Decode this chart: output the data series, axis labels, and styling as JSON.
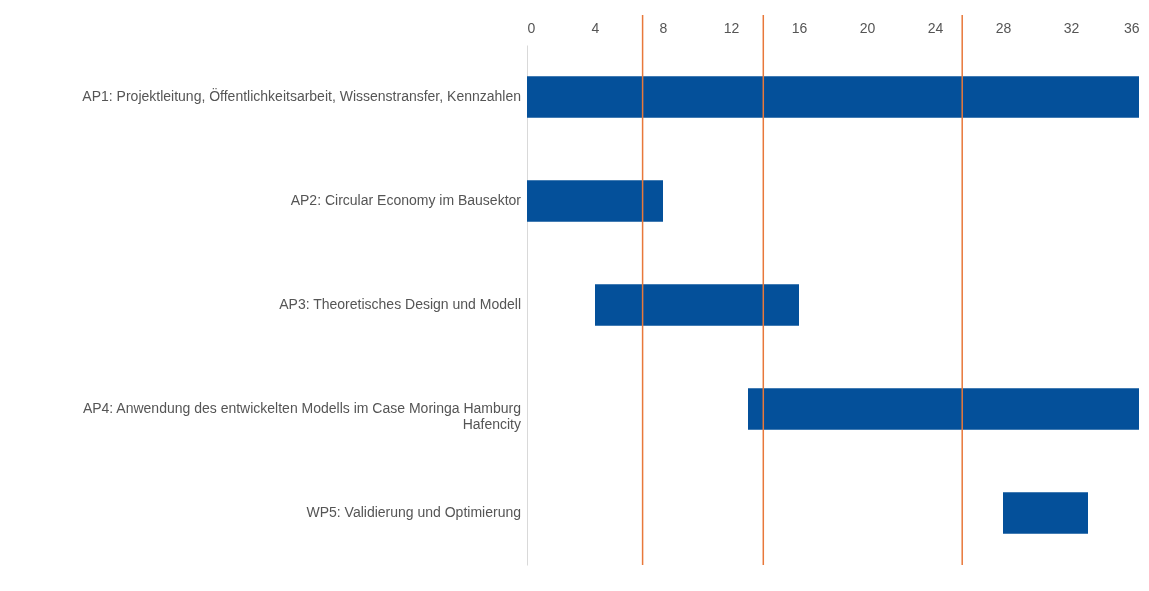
{
  "chart_data": {
    "type": "bar",
    "orientation": "horizontal",
    "categories": [
      "AP1: Projektleitung, Öffentlichkeitsarbeit, Wissenstransfer, Kennzahlen",
      "AP2: Circular Economy im Bausektor",
      "AP3: Theoretisches Design und Modell",
      "AP4: Anwendung des entwickelten Modells im Case Moringa Hamburg Hafencity",
      "WP5: Validierung und Optimierung"
    ],
    "base": [
      0,
      0,
      4,
      13,
      28
    ],
    "values": [
      36,
      8,
      12,
      23,
      5
    ],
    "color": "#04509a",
    "xlim": [
      0,
      36
    ],
    "xticks": [
      0,
      4,
      8,
      12,
      16,
      20,
      24,
      28,
      32,
      36
    ],
    "ref_lines": [
      {
        "axis": "x",
        "value": 6.8,
        "color": "#e8783a"
      },
      {
        "axis": "x",
        "value": 13.9,
        "color": "#e8783a"
      },
      {
        "axis": "x",
        "value": 25.6,
        "color": "#e8783a"
      }
    ],
    "grid": false,
    "legend": false
  }
}
